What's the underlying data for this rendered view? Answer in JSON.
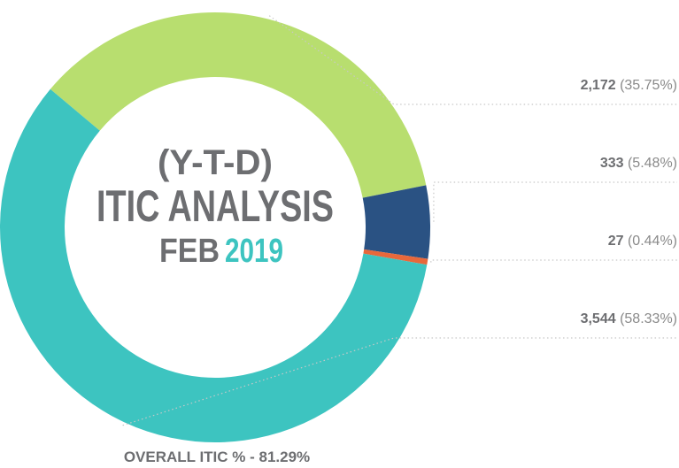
{
  "chart_data": {
    "type": "donut",
    "center_text": {
      "line1": "(Y-T-D)",
      "line2": "ITIC ANALYSIS",
      "line3a": "FEB",
      "line3b": "2019"
    },
    "categories": [
      null,
      null,
      null,
      null
    ],
    "values": [
      2172,
      333,
      27,
      3544
    ],
    "value_labels": [
      "2,172",
      "333",
      "27",
      "3,544"
    ],
    "percent_labels": [
      "(35.75%)",
      "(5.48%)",
      "(0.44%)",
      "(58.33%)"
    ],
    "colors": [
      "#b8de6f",
      "#2a5283",
      "#e8683b",
      "#3dc4c0"
    ],
    "footer": "OVERALL ITIC % - 81.29%"
  }
}
